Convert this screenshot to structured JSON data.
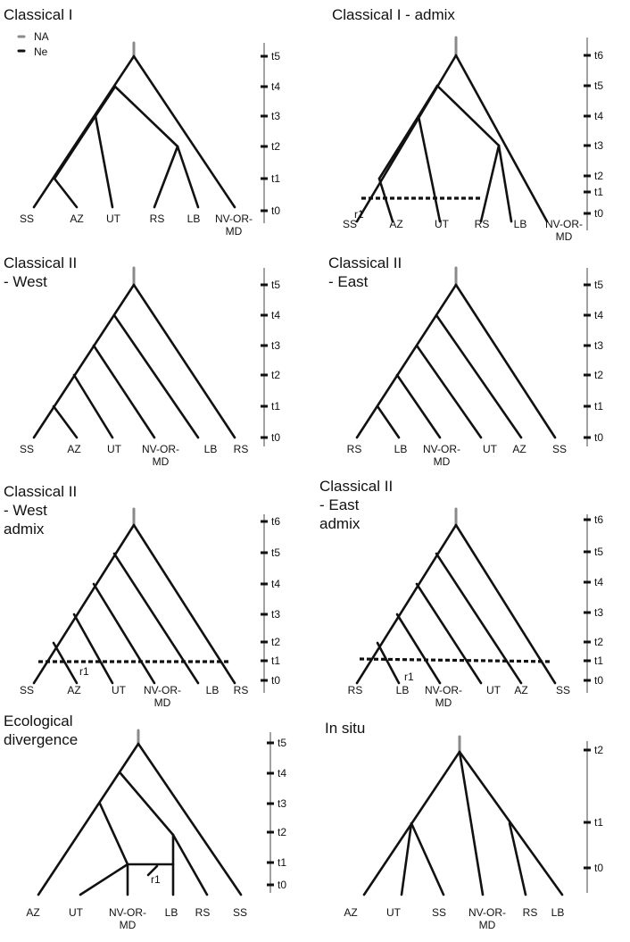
{
  "legend": {
    "na_label": "NA",
    "ne_label": "Ne"
  },
  "panels": [
    {
      "id": "classical-1",
      "title": [
        "Classical I"
      ],
      "ticks": [
        "t0",
        "t1",
        "t2",
        "t3",
        "t4",
        "t5"
      ],
      "leaves": [
        "SS",
        "AZ",
        "UT",
        "RS",
        "LB",
        "NV-OR-MD"
      ],
      "migration_label": ""
    },
    {
      "id": "classical-1-admix",
      "title": [
        "Classical I - admix"
      ],
      "ticks": [
        "t0",
        "t1",
        "t2",
        "t3",
        "t4",
        "t5",
        "t6"
      ],
      "leaves": [
        "SS",
        "AZ",
        "UT",
        "RS",
        "LB",
        "NV-OR-MD"
      ],
      "migration_label": "r1"
    },
    {
      "id": "classical-2-west",
      "title": [
        "Classical II",
        "- West"
      ],
      "ticks": [
        "t0",
        "t1",
        "t2",
        "t3",
        "t4",
        "t5"
      ],
      "leaves": [
        "SS",
        "AZ",
        "UT",
        "NV-OR-MD",
        "LB",
        "RS"
      ],
      "migration_label": ""
    },
    {
      "id": "classical-2-east",
      "title": [
        "Classical II",
        "- East"
      ],
      "ticks": [
        "t0",
        "t1",
        "t2",
        "t3",
        "t4",
        "t5"
      ],
      "leaves": [
        "RS",
        "LB",
        "NV-OR-MD",
        "UT",
        "AZ",
        "SS"
      ],
      "migration_label": ""
    },
    {
      "id": "classical-2-west-admix",
      "title": [
        "Classical II",
        "- West",
        "admix"
      ],
      "ticks": [
        "t0",
        "t1",
        "t2",
        "t3",
        "t4",
        "t5",
        "t6"
      ],
      "leaves": [
        "SS",
        "AZ",
        "UT",
        "NV-OR-MD",
        "LB",
        "RS"
      ],
      "migration_label": "r1"
    },
    {
      "id": "classical-2-east-admix",
      "title": [
        "Classical II",
        "- East",
        "admix"
      ],
      "ticks": [
        "t0",
        "t1",
        "t2",
        "t3",
        "t4",
        "t5",
        "t6"
      ],
      "leaves": [
        "RS",
        "LB",
        "NV-OR-MD",
        "UT",
        "AZ",
        "SS"
      ],
      "migration_label": "r1"
    },
    {
      "id": "ecological-divergence",
      "title": [
        "Ecological",
        "divergence"
      ],
      "ticks": [
        "t0",
        "t1",
        "t2",
        "t3",
        "t4",
        "t5"
      ],
      "leaves": [
        "AZ",
        "UT",
        "NV-OR-MD",
        "LB",
        "RS",
        "SS"
      ],
      "migration_label": "r1"
    },
    {
      "id": "in-situ",
      "title": [
        "In situ"
      ],
      "ticks": [
        "t0",
        "t1",
        "t2"
      ],
      "leaves": [
        "AZ",
        "UT",
        "SS",
        "NV-OR-MD",
        "RS",
        "LB"
      ],
      "migration_label": ""
    }
  ]
}
